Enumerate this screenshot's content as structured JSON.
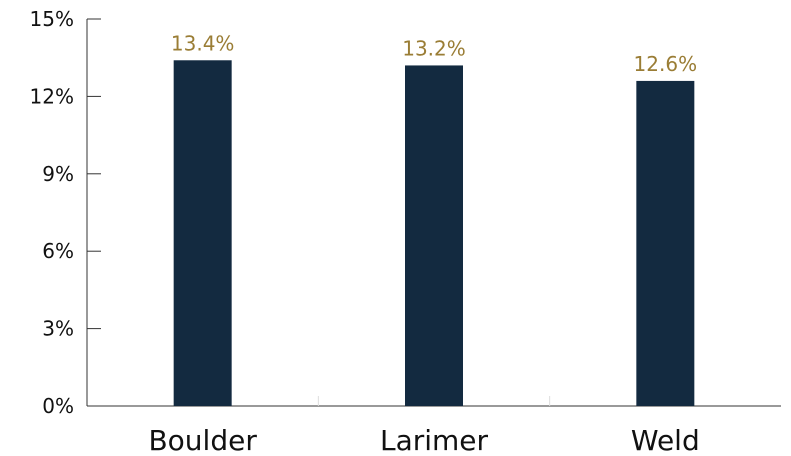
{
  "chart_data": {
    "type": "bar",
    "categories": [
      "Boulder",
      "Larimer",
      "Weld"
    ],
    "values": [
      13.4,
      13.2,
      12.6
    ],
    "data_labels": [
      "13.4%",
      "13.2%",
      "12.6%"
    ],
    "y_ticks": [
      0,
      3,
      6,
      9,
      12,
      15
    ],
    "y_tick_labels": [
      "0%",
      "3%",
      "6%",
      "9%",
      "12%",
      "15%"
    ],
    "ylim": [
      0,
      15
    ],
    "title": "",
    "xlabel": "",
    "ylabel": "",
    "grid": false,
    "legend": "none",
    "colors": {
      "bar": "#132a40",
      "data_label": "#9a7d35",
      "axis": "#333333",
      "text": "#111111"
    }
  }
}
